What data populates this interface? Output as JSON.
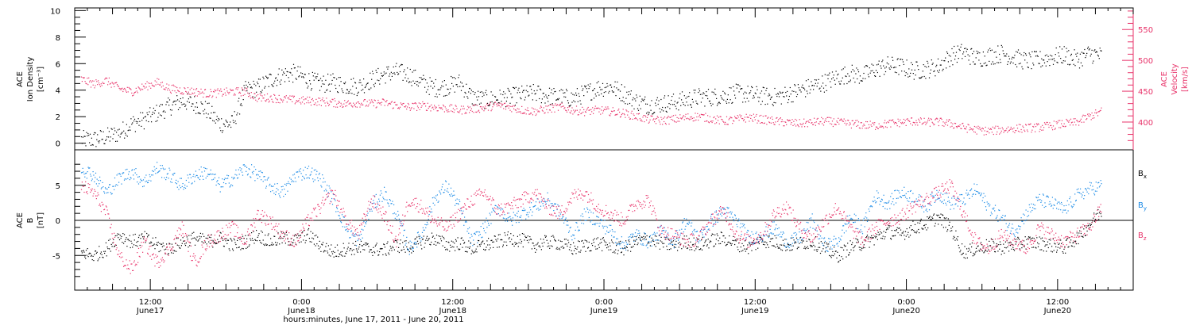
{
  "chart_data": [
    {
      "type": "scatter",
      "panel": "top",
      "ylabel_left": [
        "ACE",
        "Ion Density",
        "[cm⁻³]"
      ],
      "ylabel_right": [
        "ACE",
        "Velocity",
        "[km/s]"
      ],
      "ylim_left": [
        -0.5,
        10.2
      ],
      "yticks_left": [
        "0",
        "2",
        "4",
        "6",
        "8",
        "10"
      ],
      "ylim_right": [
        355,
        585
      ],
      "yticks_right": [
        "400",
        "450",
        "500",
        "550"
      ],
      "series": [
        {
          "color": "#000000",
          "x_hours": [
            0,
            1,
            2,
            3,
            4,
            5,
            6,
            7,
            8,
            9,
            10,
            11,
            12,
            13,
            14,
            15,
            16,
            17,
            18,
            19,
            20,
            21,
            22,
            23,
            24,
            25,
            26,
            27,
            28,
            29,
            30,
            31,
            32,
            33,
            34,
            35,
            36,
            37,
            38,
            39,
            40,
            41,
            42,
            43,
            44,
            45,
            46,
            47,
            48,
            49,
            50,
            51,
            52,
            53,
            54,
            55,
            56,
            57,
            58,
            59,
            60,
            61,
            62,
            63,
            64,
            65,
            66,
            67,
            68,
            69,
            70,
            71,
            72,
            73,
            74,
            75,
            76,
            77,
            78,
            79,
            80,
            81
          ],
          "values": [
            0.3,
            0.3,
            0.5,
            0.8,
            1.5,
            1.8,
            2.3,
            2.8,
            3.2,
            3.0,
            2.5,
            1.5,
            1.5,
            4.0,
            4.2,
            4.8,
            5.2,
            5.3,
            4.8,
            4.5,
            4.6,
            4.4,
            4.3,
            4.8,
            5.2,
            5.4,
            5.2,
            4.6,
            4.2,
            4.3,
            4.6,
            3.5,
            3.3,
            3.4,
            3.5,
            3.7,
            3.8,
            3.6,
            3.5,
            3.4,
            3.8,
            4.2,
            4.3,
            3.8,
            3.2,
            2.9,
            3.0,
            3.1,
            3.3,
            3.5,
            3.5,
            3.6,
            3.8,
            3.7,
            3.6,
            3.5,
            3.7,
            4.0,
            4.3,
            4.6,
            5.0,
            5.3,
            5.1,
            5.6,
            5.9,
            5.8,
            5.5,
            5.6,
            5.8,
            6.6,
            6.9,
            6.4,
            6.6,
            6.8,
            6.5,
            6.2,
            6.3,
            6.5,
            6.7,
            6.3,
            6.8,
            6.6
          ]
        },
        {
          "color": "#e8336a",
          "x_hours": [
            0,
            1,
            2,
            3,
            4,
            5,
            6,
            7,
            8,
            9,
            10,
            11,
            12,
            13,
            14,
            15,
            16,
            17,
            18,
            19,
            20,
            21,
            22,
            23,
            24,
            25,
            26,
            27,
            28,
            29,
            30,
            31,
            32,
            33,
            34,
            35,
            36,
            37,
            38,
            39,
            40,
            41,
            42,
            43,
            44,
            45,
            46,
            47,
            48,
            49,
            50,
            51,
            52,
            53,
            54,
            55,
            56,
            57,
            58,
            59,
            60,
            61,
            62,
            63,
            64,
            65,
            66,
            67,
            68,
            69,
            70,
            71,
            72,
            73,
            74,
            75,
            76,
            77,
            78,
            79,
            80,
            81
          ],
          "values": [
            470,
            462,
            468,
            455,
            450,
            458,
            465,
            455,
            452,
            450,
            447,
            448,
            450,
            450,
            440,
            440,
            438,
            436,
            435,
            434,
            432,
            430,
            432,
            430,
            432,
            428,
            425,
            427,
            425,
            423,
            420,
            422,
            424,
            428,
            425,
            420,
            418,
            422,
            425,
            420,
            418,
            420,
            418,
            415,
            410,
            405,
            403,
            405,
            408,
            410,
            406,
            402,
            405,
            408,
            405,
            402,
            400,
            398,
            400,
            402,
            400,
            398,
            396,
            395,
            398,
            400,
            402,
            400,
            401,
            398,
            392,
            388,
            386,
            388,
            390,
            391,
            392,
            395,
            398,
            400,
            410,
            418
          ]
        }
      ]
    },
    {
      "type": "scatter",
      "panel": "bottom",
      "ylabel_left": [
        "ACE",
        "B",
        "[nT]"
      ],
      "ylim": [
        -10,
        10
      ],
      "yticks": [
        "-5",
        "0",
        "5"
      ],
      "legend": [
        "Bx",
        "By",
        "Bz"
      ],
      "series": [
        {
          "name": "Bx",
          "color": "#000000",
          "x_hours": [
            0,
            1,
            2,
            3,
            4,
            5,
            6,
            7,
            8,
            9,
            10,
            11,
            12,
            13,
            14,
            15,
            16,
            17,
            18,
            19,
            20,
            21,
            22,
            23,
            24,
            25,
            26,
            27,
            28,
            29,
            30,
            31,
            32,
            33,
            34,
            35,
            36,
            37,
            38,
            39,
            40,
            41,
            42,
            43,
            44,
            45,
            46,
            47,
            48,
            49,
            50,
            51,
            52,
            53,
            54,
            55,
            56,
            57,
            58,
            59,
            60,
            61,
            62,
            63,
            64,
            65,
            66,
            67,
            68,
            69,
            70,
            71,
            72,
            73,
            74,
            75,
            76,
            77,
            78,
            79,
            80,
            81
          ],
          "values": [
            -4.5,
            -5,
            -4,
            -2,
            -3,
            -2.5,
            -3.5,
            -4,
            -3,
            -2.5,
            -3,
            -2.5,
            -3.5,
            -3,
            -2,
            -3,
            -2.5,
            -2.8,
            -2,
            -3.5,
            -4.5,
            -4,
            -3.8,
            -4,
            -4.2,
            -3.5,
            -3.8,
            -3,
            -2.5,
            -3.5,
            -3.2,
            -4,
            -3.5,
            -3,
            -2.5,
            -2.8,
            -3.5,
            -3,
            -3.2,
            -4,
            -3.5,
            -3.2,
            -3.6,
            -4,
            -3,
            -2.5,
            -3.2,
            -3.5,
            -3,
            -3.5,
            -2.8,
            -2.5,
            -3.3,
            -3.8,
            -2.8,
            -3,
            -3.5,
            -3.2,
            -3,
            -4,
            -5,
            -3.8,
            -3.2,
            -2.5,
            -1.5,
            -2,
            -1,
            -0.5,
            0.5,
            -1,
            -4.5,
            -4,
            -3.5,
            -3.8,
            -3.5,
            -3,
            -3.2,
            -3.5,
            -3.8,
            -2.5,
            -0.5,
            1.5
          ]
        },
        {
          "name": "By",
          "color": "#1a8ae6",
          "x_hours": [
            0,
            1,
            2,
            3,
            4,
            5,
            6,
            7,
            8,
            9,
            10,
            11,
            12,
            13,
            14,
            15,
            16,
            17,
            18,
            19,
            20,
            21,
            22,
            23,
            24,
            25,
            26,
            27,
            28,
            29,
            30,
            31,
            32,
            33,
            34,
            35,
            36,
            37,
            38,
            39,
            40,
            41,
            42,
            43,
            44,
            45,
            46,
            47,
            48,
            49,
            50,
            51,
            52,
            53,
            54,
            55,
            56,
            57,
            58,
            59,
            60,
            61,
            62,
            63,
            64,
            65,
            66,
            67,
            68,
            69,
            70,
            71,
            72,
            73,
            74,
            75,
            76,
            77,
            78,
            79,
            80,
            81
          ],
          "values": [
            7.5,
            6.5,
            4,
            6,
            7,
            5.5,
            7.5,
            6.5,
            5,
            6.5,
            7,
            5,
            6,
            7.5,
            6.5,
            5,
            4,
            6.5,
            7,
            6,
            3,
            -1,
            -3,
            2,
            4,
            1,
            -4,
            -2,
            3,
            5,
            2,
            -3,
            -1,
            2,
            0,
            1,
            2,
            3,
            1,
            -2,
            1,
            0,
            -1.5,
            -3.5,
            -2,
            -3,
            -1.5,
            -3,
            0,
            -2.5,
            0,
            1.5,
            0,
            -2.5,
            -2,
            -1,
            -3,
            -2.5,
            0,
            -3.5,
            -3,
            0.5,
            -1,
            3.5,
            2.5,
            4,
            3.5,
            2,
            4,
            2.5,
            3,
            4.5,
            2,
            0.5,
            -1.5,
            1,
            3,
            2.5,
            1.5,
            3.5,
            4.5,
            5
          ]
        },
        {
          "name": "Bz",
          "color": "#e8336a",
          "x_hours": [
            0,
            1,
            2,
            3,
            4,
            5,
            6,
            7,
            8,
            9,
            10,
            11,
            12,
            13,
            14,
            15,
            16,
            17,
            18,
            19,
            20,
            21,
            22,
            23,
            24,
            25,
            26,
            27,
            28,
            29,
            30,
            31,
            32,
            33,
            34,
            35,
            36,
            37,
            38,
            39,
            40,
            41,
            42,
            43,
            44,
            45,
            46,
            47,
            48,
            49,
            50,
            51,
            52,
            53,
            54,
            55,
            56,
            57,
            58,
            59,
            60,
            61,
            62,
            63,
            64,
            65,
            66,
            67,
            68,
            69,
            70,
            71,
            72,
            73,
            74,
            75,
            76,
            77,
            78,
            79,
            80,
            81
          ],
          "values": [
            5,
            4,
            1,
            -5,
            -7,
            -3,
            -6,
            -4,
            -1,
            -6,
            -3,
            -2,
            -1,
            -3,
            1,
            0,
            -2,
            -3,
            0,
            2,
            4,
            0,
            -2,
            3,
            1,
            -3,
            3,
            2,
            0,
            -1,
            1,
            3,
            4,
            1.5,
            2,
            3,
            4,
            2,
            1,
            3.5,
            4,
            2,
            1,
            0,
            2.5,
            3,
            -1.5,
            -2,
            -3,
            -2.5,
            0,
            1.5,
            -2,
            -3,
            -2,
            1,
            2,
            -1,
            -2.5,
            0,
            2,
            -1,
            -3,
            -1,
            0,
            0.5,
            2,
            3,
            4,
            5,
            1,
            -3,
            -4,
            -2,
            -3,
            -4,
            -1,
            -2,
            -3,
            -2,
            -1,
            2
          ]
        }
      ]
    }
  ],
  "x_axis": {
    "start_label_time": "hours:minutes, June 17, 2011 - June 20, 2011",
    "ticks": [
      {
        "time": "12:00",
        "date": "June17"
      },
      {
        "time": "0:00",
        "date": "June18"
      },
      {
        "time": "12:00",
        "date": "June18"
      },
      {
        "time": "0:00",
        "date": "June19"
      },
      {
        "time": "12:00",
        "date": "June19"
      },
      {
        "time": "0:00",
        "date": "June20"
      },
      {
        "time": "12:00",
        "date": "June20"
      }
    ]
  },
  "legend_labels": {
    "bx": "B",
    "bx_sub": "x",
    "by": "B",
    "by_sub": "y",
    "bz": "B",
    "bz_sub": "z"
  },
  "colors": {
    "black": "#000000",
    "pink": "#e8336a",
    "blue": "#1a8ae6"
  }
}
